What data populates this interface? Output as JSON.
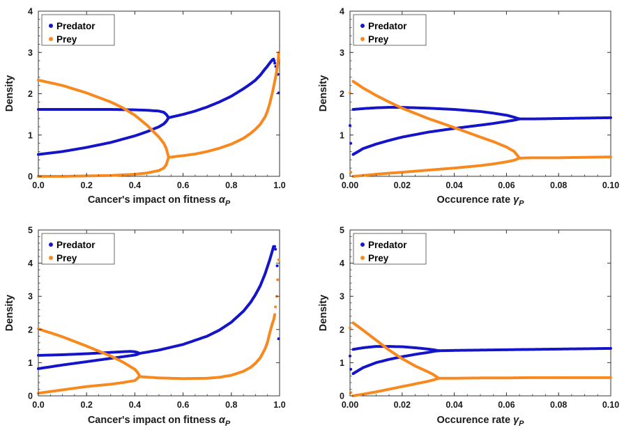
{
  "colors": {
    "predator": "#1414c8",
    "prey": "#f7891e"
  },
  "panels": [
    {
      "xlabel": "Cancer's impact on fitness ",
      "xsym": "α",
      "xsub": "P",
      "ylabel": "Density",
      "xlim": [
        0,
        1.0
      ],
      "ylim": [
        0,
        4
      ],
      "xticks": [
        "0.0",
        "0.2",
        "0.4",
        "0.6",
        "0.8",
        "1.0"
      ],
      "xtick_values": [
        0,
        0.2,
        0.4,
        0.6,
        0.8,
        1.0
      ],
      "yticks": [
        "0",
        "1",
        "2",
        "3",
        "4"
      ],
      "ytick_values": [
        0,
        1,
        2,
        3,
        4
      ],
      "legend": [
        "Predator",
        "Prey"
      ]
    },
    {
      "xlabel": "Occurence rate ",
      "xsym": "γ",
      "xsub": "P",
      "ylabel": "Density",
      "xlim": [
        0,
        0.1
      ],
      "ylim": [
        0,
        4
      ],
      "xticks": [
        "0.00",
        "0.02",
        "0.04",
        "0.06",
        "0.08",
        "0.10"
      ],
      "xtick_values": [
        0,
        0.02,
        0.04,
        0.06,
        0.08,
        0.1
      ],
      "yticks": [
        "0",
        "1",
        "2",
        "3",
        "4"
      ],
      "ytick_values": [
        0,
        1,
        2,
        3,
        4
      ],
      "legend": [
        "Predator",
        "Prey"
      ]
    },
    {
      "xlabel": "Cancer's impact on fitness ",
      "xsym": "α",
      "xsub": "P",
      "ylabel": "Density",
      "xlim": [
        0,
        1.0
      ],
      "ylim": [
        0,
        5
      ],
      "xticks": [
        "0.0",
        "0.2",
        "0.4",
        "0.6",
        "0.8",
        "1.0"
      ],
      "xtick_values": [
        0,
        0.2,
        0.4,
        0.6,
        0.8,
        1.0
      ],
      "yticks": [
        "0",
        "1",
        "2",
        "3",
        "4",
        "5"
      ],
      "ytick_values": [
        0,
        1,
        2,
        3,
        4,
        5
      ],
      "legend": [
        "Predator",
        "Prey"
      ]
    },
    {
      "xlabel": "Occurence rate ",
      "xsym": "γ",
      "xsub": "P",
      "ylabel": "Density",
      "xlim": [
        0,
        0.1
      ],
      "ylim": [
        0,
        5
      ],
      "xticks": [
        "0.00",
        "0.02",
        "0.04",
        "0.06",
        "0.08",
        "0.10"
      ],
      "xtick_values": [
        0,
        0.02,
        0.04,
        0.06,
        0.08,
        0.1
      ],
      "yticks": [
        "0",
        "1",
        "2",
        "3",
        "4",
        "5"
      ],
      "ytick_values": [
        0,
        1,
        2,
        3,
        4,
        5
      ],
      "legend": [
        "Predator",
        "Prey"
      ]
    }
  ],
  "chart_data": [
    {
      "type": "scatter",
      "xlabel": "Cancer's impact on fitness αP",
      "ylabel": "Density",
      "xlim": [
        0,
        1.0
      ],
      "ylim": [
        0,
        4
      ],
      "legend_position": "top-left",
      "series": [
        {
          "name": "Predator",
          "color": "#1414c8",
          "branches": [
            {
              "x": [
                0.0,
                0.1,
                0.2,
                0.3,
                0.4,
                0.45,
                0.5,
                0.52,
                0.53,
                0.54
              ],
              "y": [
                1.62,
                1.62,
                1.62,
                1.62,
                1.61,
                1.6,
                1.58,
                1.55,
                1.5,
                1.42
              ]
            },
            {
              "x": [
                0.0,
                0.1,
                0.2,
                0.3,
                0.4,
                0.45,
                0.5,
                0.52,
                0.53,
                0.54
              ],
              "y": [
                0.53,
                0.6,
                0.7,
                0.82,
                0.98,
                1.08,
                1.2,
                1.27,
                1.33,
                1.42
              ]
            },
            {
              "x": [
                0.54,
                0.6,
                0.65,
                0.7,
                0.75,
                0.8,
                0.85,
                0.88,
                0.9,
                0.92,
                0.94,
                0.95,
                0.96,
                0.97,
                0.975
              ],
              "y": [
                1.42,
                1.5,
                1.58,
                1.68,
                1.8,
                1.94,
                2.12,
                2.24,
                2.33,
                2.45,
                2.6,
                2.67,
                2.75,
                2.82,
                2.84
              ]
            },
            {
              "x": [
                0.978,
                0.98,
                0.984,
                0.988,
                0.993,
                0.996
              ],
              "y": [
                2.8,
                2.74,
                2.66,
                2.58,
                2.47,
                2.02
              ]
            }
          ]
        },
        {
          "name": "Prey",
          "color": "#f7891e",
          "branches": [
            {
              "x": [
                0.0,
                0.1,
                0.2,
                0.3,
                0.35,
                0.4,
                0.45,
                0.5,
                0.52,
                0.53,
                0.54
              ],
              "y": [
                2.33,
                2.2,
                2.02,
                1.8,
                1.66,
                1.48,
                1.24,
                0.95,
                0.8,
                0.68,
                0.46
              ]
            },
            {
              "x": [
                0.0,
                0.1,
                0.2,
                0.3,
                0.4,
                0.45,
                0.5,
                0.52,
                0.53,
                0.54
              ],
              "y": [
                0.0,
                0.0,
                0.01,
                0.02,
                0.05,
                0.08,
                0.14,
                0.2,
                0.28,
                0.46
              ]
            },
            {
              "x": [
                0.54,
                0.6,
                0.65,
                0.7,
                0.75,
                0.8,
                0.85,
                0.88,
                0.9,
                0.92,
                0.94,
                0.95,
                0.96,
                0.97,
                0.975,
                0.98,
                0.984,
                0.988,
                0.993,
                0.997
              ],
              "y": [
                0.46,
                0.5,
                0.54,
                0.6,
                0.68,
                0.78,
                0.92,
                1.04,
                1.14,
                1.26,
                1.44,
                1.58,
                1.78,
                2.02,
                2.16,
                2.3,
                2.42,
                2.55,
                2.75,
                3.0
              ]
            }
          ]
        }
      ]
    },
    {
      "type": "scatter",
      "xlabel": "Occurence rate γP",
      "ylabel": "Density",
      "xlim": [
        0,
        0.1
      ],
      "ylim": [
        0,
        4
      ],
      "legend_position": "top-left",
      "series": [
        {
          "name": "Predator",
          "color": "#1414c8",
          "branches": [
            {
              "x": [
                0.0012,
                0.005,
                0.01,
                0.015,
                0.02,
                0.03,
                0.04,
                0.05,
                0.055,
                0.06,
                0.063,
                0.065
              ],
              "y": [
                1.62,
                1.64,
                1.66,
                1.67,
                1.67,
                1.65,
                1.62,
                1.57,
                1.53,
                1.48,
                1.43,
                1.39
              ]
            },
            {
              "x": [
                0.0012,
                0.005,
                0.01,
                0.015,
                0.02,
                0.03,
                0.04,
                0.05,
                0.055,
                0.06,
                0.063,
                0.065
              ],
              "y": [
                0.53,
                0.67,
                0.78,
                0.87,
                0.95,
                1.07,
                1.16,
                1.24,
                1.28,
                1.33,
                1.36,
                1.39
              ]
            },
            {
              "x": [
                0.065,
                0.07,
                0.08,
                0.09,
                0.1
              ],
              "y": [
                1.39,
                1.39,
                1.4,
                1.41,
                1.42
              ]
            },
            {
              "x": [
                0.0,
                0.0003
              ],
              "y": [
                1.23,
                0.8
              ]
            }
          ]
        },
        {
          "name": "Prey",
          "color": "#f7891e",
          "branches": [
            {
              "x": [
                0.0012,
                0.005,
                0.01,
                0.015,
                0.02,
                0.03,
                0.04,
                0.05,
                0.055,
                0.06,
                0.063,
                0.065
              ],
              "y": [
                2.3,
                2.14,
                1.96,
                1.8,
                1.65,
                1.4,
                1.18,
                0.95,
                0.84,
                0.71,
                0.6,
                0.44
              ]
            },
            {
              "x": [
                0.0012,
                0.005,
                0.01,
                0.02,
                0.03,
                0.04,
                0.05,
                0.055,
                0.06,
                0.063,
                0.065
              ],
              "y": [
                0.0,
                0.02,
                0.05,
                0.1,
                0.15,
                0.2,
                0.26,
                0.3,
                0.35,
                0.39,
                0.44
              ]
            },
            {
              "x": [
                0.065,
                0.07,
                0.08,
                0.09,
                0.1
              ],
              "y": [
                0.44,
                0.45,
                0.45,
                0.46,
                0.47
              ]
            },
            {
              "x": [
                0.0,
                0.0003
              ],
              "y": [
                2.02,
                0.1
              ]
            }
          ]
        }
      ]
    },
    {
      "type": "scatter",
      "xlabel": "Cancer's impact on fitness αP",
      "ylabel": "Density",
      "xlim": [
        0,
        1.0
      ],
      "ylim": [
        0,
        5
      ],
      "legend_position": "top-left",
      "series": [
        {
          "name": "Predator",
          "color": "#1414c8",
          "branches": [
            {
              "x": [
                0.0,
                0.1,
                0.2,
                0.3,
                0.35,
                0.38,
                0.4,
                0.41,
                0.42
              ],
              "y": [
                1.22,
                1.24,
                1.27,
                1.31,
                1.33,
                1.34,
                1.33,
                1.31,
                1.28
              ]
            },
            {
              "x": [
                0.0,
                0.1,
                0.2,
                0.3,
                0.35,
                0.4,
                0.41,
                0.42
              ],
              "y": [
                0.82,
                0.93,
                1.03,
                1.13,
                1.18,
                1.23,
                1.25,
                1.28
              ]
            },
            {
              "x": [
                0.42,
                0.5,
                0.6,
                0.7,
                0.75,
                0.8,
                0.85,
                0.88,
                0.9,
                0.92,
                0.94,
                0.95,
                0.96,
                0.97,
                0.975,
                0.98
              ],
              "y": [
                1.28,
                1.38,
                1.55,
                1.8,
                1.98,
                2.22,
                2.55,
                2.82,
                3.05,
                3.32,
                3.68,
                3.9,
                4.12,
                4.37,
                4.5,
                4.5
              ]
            },
            {
              "x": [
                0.983,
                0.99,
                0.996
              ],
              "y": [
                4.42,
                3.92,
                1.72
              ]
            }
          ]
        },
        {
          "name": "Prey",
          "color": "#f7891e",
          "branches": [
            {
              "x": [
                0.0,
                0.1,
                0.2,
                0.3,
                0.35,
                0.4,
                0.41,
                0.42
              ],
              "y": [
                2.02,
                1.78,
                1.5,
                1.2,
                1.02,
                0.8,
                0.72,
                0.6
              ]
            },
            {
              "x": [
                0.0,
                0.1,
                0.2,
                0.3,
                0.35,
                0.4,
                0.41,
                0.42
              ],
              "y": [
                0.08,
                0.18,
                0.28,
                0.35,
                0.4,
                0.46,
                0.52,
                0.6
              ]
            },
            {
              "x": [
                0.42,
                0.5,
                0.6,
                0.7,
                0.75,
                0.8,
                0.85,
                0.88,
                0.9,
                0.92,
                0.94,
                0.95,
                0.96,
                0.97,
                0.975,
                0.98
              ],
              "y": [
                0.58,
                0.54,
                0.52,
                0.53,
                0.56,
                0.62,
                0.74,
                0.86,
                0.98,
                1.15,
                1.42,
                1.62,
                1.92,
                2.18,
                2.28,
                2.45
              ]
            },
            {
              "x": [
                0.983,
                0.988,
                0.992,
                0.996
              ],
              "y": [
                2.68,
                3.0,
                3.5,
                4.1
              ]
            }
          ]
        }
      ]
    },
    {
      "type": "scatter",
      "xlabel": "Occurence rate γP",
      "ylabel": "Density",
      "xlim": [
        0,
        0.1
      ],
      "ylim": [
        0,
        5
      ],
      "legend_position": "top-left",
      "series": [
        {
          "name": "Predator",
          "color": "#1414c8",
          "branches": [
            {
              "x": [
                0.0012,
                0.005,
                0.01,
                0.015,
                0.02,
                0.025,
                0.03,
                0.032,
                0.034
              ],
              "y": [
                1.4,
                1.45,
                1.49,
                1.49,
                1.48,
                1.45,
                1.41,
                1.39,
                1.36
              ]
            },
            {
              "x": [
                0.0012,
                0.005,
                0.01,
                0.015,
                0.02,
                0.025,
                0.03,
                0.032,
                0.034
              ],
              "y": [
                0.67,
                0.85,
                1.0,
                1.1,
                1.18,
                1.25,
                1.31,
                1.34,
                1.36
              ]
            },
            {
              "x": [
                0.034,
                0.04,
                0.05,
                0.06,
                0.07,
                0.08,
                0.09,
                0.1
              ],
              "y": [
                1.36,
                1.37,
                1.38,
                1.39,
                1.4,
                1.41,
                1.42,
                1.43
              ]
            },
            {
              "x": [
                0.0,
                0.0003
              ],
              "y": [
                1.2,
                0.8
              ]
            }
          ]
        },
        {
          "name": "Prey",
          "color": "#f7891e",
          "branches": [
            {
              "x": [
                0.0012,
                0.005,
                0.01,
                0.015,
                0.02,
                0.025,
                0.03,
                0.032,
                0.034
              ],
              "y": [
                2.2,
                1.98,
                1.68,
                1.38,
                1.12,
                0.9,
                0.72,
                0.64,
                0.53
              ]
            },
            {
              "x": [
                0.0012,
                0.005,
                0.01,
                0.015,
                0.02,
                0.025,
                0.03,
                0.032,
                0.034
              ],
              "y": [
                0.0,
                0.05,
                0.12,
                0.2,
                0.28,
                0.36,
                0.44,
                0.48,
                0.53
              ]
            },
            {
              "x": [
                0.034,
                0.04,
                0.05,
                0.06,
                0.07,
                0.08,
                0.09,
                0.1
              ],
              "y": [
                0.53,
                0.53,
                0.54,
                0.54,
                0.55,
                0.55,
                0.55,
                0.55
              ]
            },
            {
              "x": [
                0.0,
                0.0003
              ],
              "y": [
                2.05,
                0.1
              ]
            }
          ]
        }
      ]
    }
  ]
}
